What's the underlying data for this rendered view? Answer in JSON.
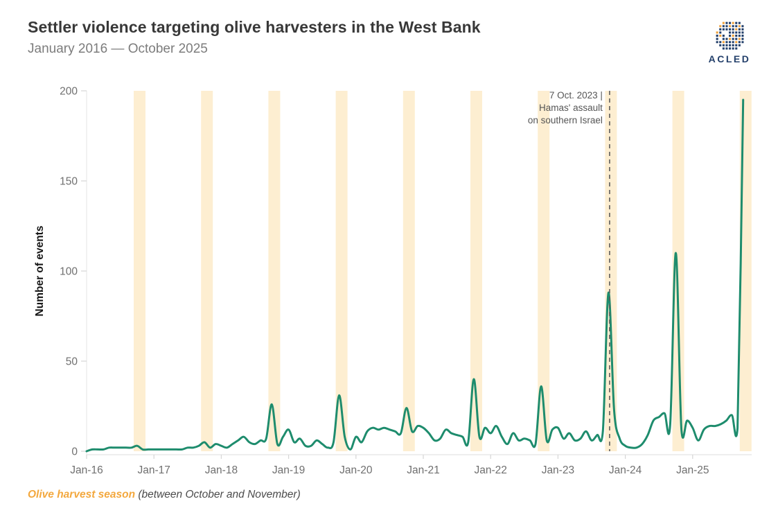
{
  "header": {
    "title": "Settler violence targeting olive harvesters in the West Bank",
    "subtitle": "January 2016 — October 2025"
  },
  "logo": {
    "text": "ACLED"
  },
  "footer": {
    "highlight": "Olive harvest season",
    "rest": " (between October and November)"
  },
  "chart_data": {
    "type": "line",
    "title": "Settler violence targeting olive harvesters in the West Bank",
    "subtitle": "January 2016 — October 2025",
    "xlabel": "",
    "ylabel": "Number of events",
    "ylim": [
      0,
      200
    ],
    "y_ticks": [
      0,
      50,
      100,
      150,
      200
    ],
    "x_tick_labels": [
      "Jan-16",
      "Jan-17",
      "Jan-18",
      "Jan-19",
      "Jan-20",
      "Jan-21",
      "Jan-22",
      "Jan-23",
      "Jan-24",
      "Jan-25"
    ],
    "grid": false,
    "legend": "none",
    "line_color": "#1e8c6d",
    "series": [
      {
        "name": "Number of events",
        "start": "2016-01",
        "end": "2025-10",
        "frequency": "monthly",
        "values": [
          0,
          1,
          1,
          1,
          2,
          2,
          2,
          2,
          2,
          3,
          1,
          1,
          1,
          1,
          1,
          1,
          1,
          1,
          2,
          2,
          3,
          5,
          2,
          4,
          3,
          2,
          4,
          6,
          8,
          5,
          4,
          6,
          7,
          26,
          4,
          8,
          12,
          5,
          7,
          3,
          3,
          6,
          4,
          2,
          5,
          31,
          8,
          1,
          8,
          5,
          11,
          13,
          12,
          13,
          12,
          11,
          10,
          24,
          11,
          14,
          13,
          10,
          6,
          7,
          12,
          10,
          9,
          8,
          5,
          40,
          8,
          13,
          10,
          14,
          8,
          4,
          10,
          6,
          7,
          6,
          4,
          36,
          6,
          12,
          13,
          7,
          10,
          6,
          7,
          11,
          6,
          9,
          11,
          88,
          23,
          7,
          3,
          2,
          2,
          4,
          9,
          17,
          19,
          21,
          15,
          110,
          12,
          17,
          13,
          6,
          12,
          14,
          14,
          15,
          17,
          20,
          13,
          195
        ]
      }
    ],
    "harvest_bands": {
      "label": "Olive harvest season",
      "months": "October–November",
      "years": [
        2016,
        2017,
        2018,
        2019,
        2020,
        2021,
        2022,
        2023,
        2024,
        2025
      ],
      "color": "#fdeed1"
    },
    "annotation": {
      "text_lines": [
        "7 Oct. 2023 |",
        "Hamas' assault",
        "on southern Israel"
      ],
      "date": "2023-10-07",
      "line_style": "dashed",
      "line_color": "#5c5c5c"
    }
  }
}
